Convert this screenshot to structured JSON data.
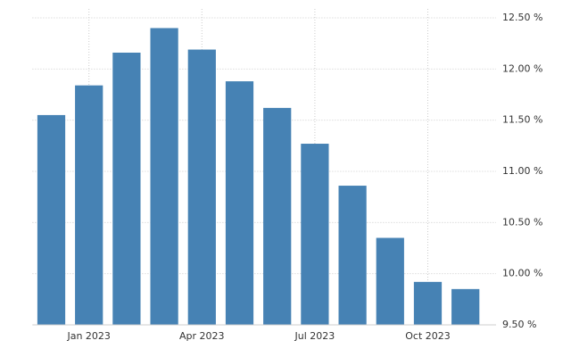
{
  "chart_data": {
    "type": "bar",
    "categories": [
      null,
      "Jan 2023",
      null,
      null,
      "Apr 2023",
      null,
      null,
      "Jul 2023",
      null,
      null,
      "Oct 2023",
      null
    ],
    "values": [
      11.55,
      11.84,
      12.16,
      12.4,
      12.19,
      11.88,
      11.62,
      11.27,
      10.86,
      10.35,
      9.92,
      9.85
    ],
    "color": "#4682b4",
    "ylim": [
      9.5,
      12.5
    ],
    "yticks": [
      {
        "value": 9.5,
        "label": "9.50 %"
      },
      {
        "value": 10,
        "label": "10.00 %"
      },
      {
        "value": 10.5,
        "label": "10.50 %"
      },
      {
        "value": 11,
        "label": "11.00 %"
      },
      {
        "value": 11.5,
        "label": "11.50 %"
      },
      {
        "value": 12,
        "label": "12.00 %"
      },
      {
        "value": 12.5,
        "label": "12.50 %"
      }
    ],
    "grid": true
  }
}
